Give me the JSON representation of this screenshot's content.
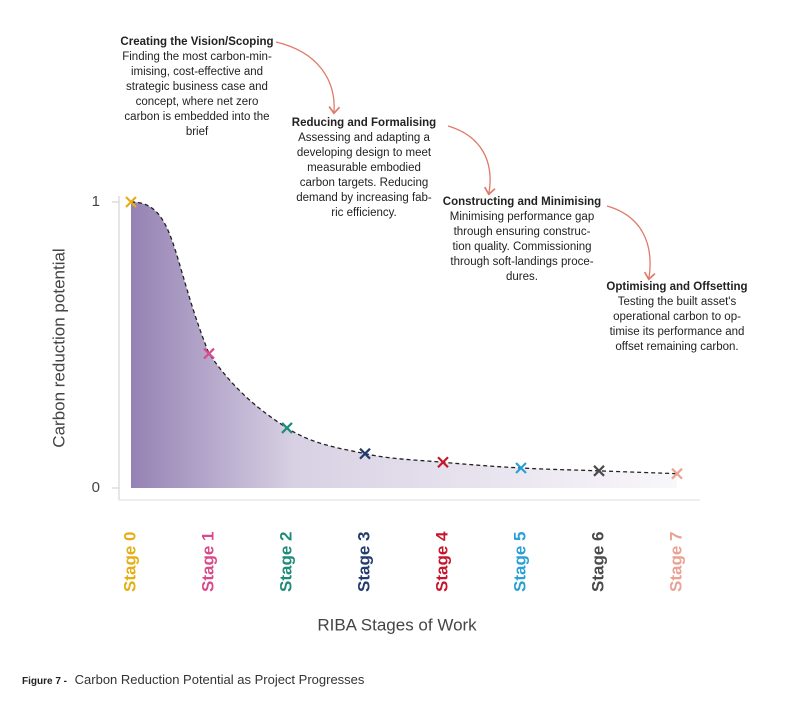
{
  "chart_data": {
    "type": "line",
    "x_label": "RIBA Stages of Work",
    "y_label": "Carbon reduction  potential",
    "categories": [
      "Stage 0",
      "Stage 1",
      "Stage 2",
      "Stage 3",
      "Stage 4",
      "Stage 5",
      "Stage 6",
      "Stage 7"
    ],
    "colors": [
      "#e6ae12",
      "#d94a8c",
      "#1e8c78",
      "#233c6e",
      "#c8152e",
      "#2a9fd6",
      "#4a4a4a",
      "#e9a293"
    ],
    "values": [
      1,
      0.47,
      0.21,
      0.12,
      0.09,
      0.07,
      0.06,
      0.05
    ],
    "ylim": [
      0,
      1
    ],
    "yticks": [
      0,
      1
    ],
    "line_color": "#222222",
    "fill_color": "#8f7bb0",
    "annotations": [
      {
        "title": "Creating the Vision/Scoping",
        "lines": [
          "Finding the most carbon-min-",
          "imising, cost-effective and",
          "strategic business case and",
          "concept, where net zero",
          "carbon is embedded into the",
          "brief"
        ]
      },
      {
        "title": "Reducing and Formalising",
        "lines": [
          "Assessing and adapting a",
          "developing design to meet",
          "measurable embodied",
          "carbon targets. Reducing",
          "demand by increasing fab-",
          "ric efficiency."
        ]
      },
      {
        "title": "Constructing and Minimising",
        "lines": [
          "Minimising performance gap",
          "through ensuring construc-",
          "tion quality. Commissioning",
          "through soft-landings proce-",
          "dures."
        ]
      },
      {
        "title": "Optimising and Offsetting",
        "lines": [
          "Testing the built asset's",
          "operational carbon to op-",
          "timise its performance and",
          "offset remaining carbon."
        ]
      }
    ],
    "caption_label": "Figure 7 -",
    "caption": "Carbon Reduction Potential as Project Progresses"
  }
}
